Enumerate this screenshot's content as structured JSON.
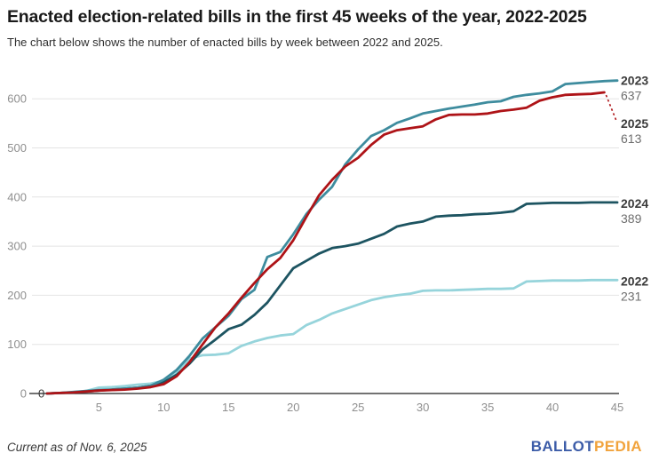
{
  "header": {
    "title": "Enacted election-related bills in the first 45 weeks of the year, 2022-2025",
    "subtitle": "The chart below shows the number of enacted bills by week between 2022 and 2025."
  },
  "chart_data": {
    "type": "line",
    "title": "Enacted election-related bills in the first 45 weeks of the year, 2022-2025",
    "subtitle": "The chart below shows the number of enacted bills by week between 2022 and 2025.",
    "xlabel": "",
    "ylabel": "",
    "x_unit": "week",
    "xlim": [
      1,
      45
    ],
    "ylim": [
      0,
      650
    ],
    "x_ticks": [
      5,
      10,
      15,
      20,
      25,
      30,
      35,
      40,
      45
    ],
    "y_ticks": [
      0,
      100,
      200,
      300,
      400,
      500,
      600
    ],
    "grid": true,
    "legend_position": "end-of-line-labels-right",
    "start_label": "0",
    "axis_color": "#444444",
    "grid_color": "#e4e4e4",
    "tick_label_color": "#8f8f8f",
    "series": [
      {
        "name": "2022",
        "color": "#96d4db",
        "final_value": 231,
        "values": [
          0,
          1,
          2,
          5,
          12,
          13,
          15,
          18,
          20,
          26,
          43,
          71,
          78,
          79,
          82,
          97,
          106,
          113,
          118,
          121,
          139,
          150,
          163,
          172,
          181,
          190,
          196,
          200,
          203,
          209,
          210,
          210,
          211,
          212,
          213,
          213,
          214,
          228,
          229,
          230,
          230,
          230,
          231,
          231,
          231
        ]
      },
      {
        "name": "2024",
        "color": "#1d5461",
        "final_value": 389,
        "values": [
          0,
          1,
          2,
          4,
          6,
          8,
          10,
          12,
          16,
          23,
          38,
          61,
          90,
          110,
          131,
          140,
          160,
          185,
          220,
          255,
          270,
          285,
          296,
          300,
          305,
          315,
          325,
          340,
          346,
          350,
          360,
          362,
          363,
          365,
          366,
          368,
          371,
          386,
          387,
          388,
          388,
          388,
          389,
          389,
          389
        ]
      },
      {
        "name": "2023",
        "color": "#3e8c9e",
        "final_value": 637,
        "values": [
          0,
          1,
          3,
          5,
          7,
          8,
          10,
          12,
          16,
          28,
          48,
          77,
          112,
          135,
          158,
          192,
          211,
          278,
          288,
          324,
          365,
          395,
          421,
          466,
          497,
          524,
          536,
          551,
          560,
          570,
          575,
          580,
          584,
          588,
          593,
          595,
          604,
          608,
          611,
          615,
          630,
          632,
          634,
          636,
          637
        ]
      },
      {
        "name": "2025",
        "color": "#ae1317",
        "final_value": 613,
        "dashed_leader": true,
        "values": [
          0,
          1,
          2,
          4,
          6,
          7,
          8,
          10,
          13,
          19,
          35,
          64,
          100,
          135,
          163,
          195,
          225,
          253,
          276,
          312,
          359,
          404,
          435,
          462,
          480,
          506,
          527,
          536,
          540,
          544,
          558,
          567,
          568,
          568,
          570,
          575,
          578,
          582,
          596,
          603,
          608,
          609,
          610,
          613
        ]
      }
    ]
  },
  "footer": {
    "note": "Current as of Nov. 6, 2025",
    "logo": {
      "part1": "BALLOT",
      "part2": "PEDIA",
      "color1": "#3c5ca8",
      "color2": "#f1a33c"
    }
  }
}
